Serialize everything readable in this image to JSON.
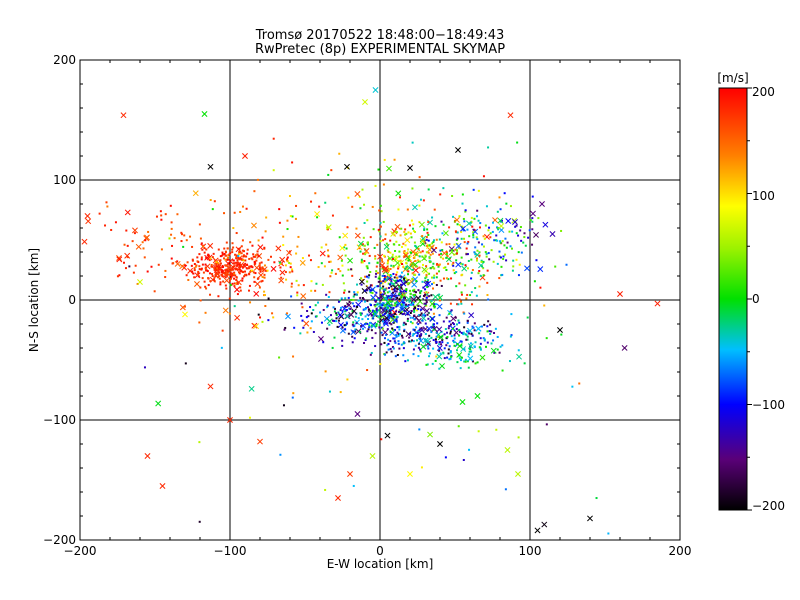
{
  "chart_data": {
    "type": "scatter",
    "title": "Tromsø 20170522 18:48:00−18:49:43",
    "subtitle": "RwPretec (8p) EXPERIMENTAL SKYMAP",
    "xlabel": "E-W location [km]",
    "ylabel": "N-S location [km]",
    "xlim": [
      -200,
      200
    ],
    "ylim": [
      -200,
      200
    ],
    "xticks": [
      "−200",
      "−100",
      "0",
      "100",
      "200"
    ],
    "yticks": [
      "−200",
      "−100",
      "0",
      "100",
      "200"
    ],
    "grid": true,
    "colorbar": {
      "label": "[m/s]",
      "range": [
        -200,
        200
      ],
      "ticks": [
        "200",
        "100",
        "0",
        "−100",
        "−200"
      ],
      "colormap": "black-purple-blue-cyan-green-yellow-orange-red"
    },
    "marker_description": "small dots and x markers colored by line-of-sight velocity",
    "clusters": [
      {
        "cx": -100,
        "cy": 28,
        "sx": 14,
        "sy": 9,
        "n": 340,
        "vmin": 160,
        "vmax": 200
      },
      {
        "cx": -150,
        "cy": 45,
        "sx": 22,
        "sy": 18,
        "n": 70,
        "vmin": 140,
        "vmax": 200
      },
      {
        "cx": -70,
        "cy": 20,
        "sx": 30,
        "sy": 28,
        "n": 110,
        "vmin": 100,
        "vmax": 200
      },
      {
        "cx": 25,
        "cy": 30,
        "sx": 28,
        "sy": 18,
        "n": 420,
        "vmin": -40,
        "vmax": 200
      },
      {
        "cx": 70,
        "cy": 50,
        "sx": 20,
        "sy": 15,
        "n": 150,
        "vmin": -160,
        "vmax": 60
      },
      {
        "cx": 10,
        "cy": 0,
        "sx": 14,
        "sy": 12,
        "n": 380,
        "vmin": -200,
        "vmax": 40
      },
      {
        "cx": -20,
        "cy": -15,
        "sx": 18,
        "sy": 10,
        "n": 160,
        "vmin": -200,
        "vmax": 0
      },
      {
        "cx": 35,
        "cy": -30,
        "sx": 22,
        "sy": 10,
        "n": 240,
        "vmin": -200,
        "vmax": -20
      },
      {
        "cx": 50,
        "cy": -40,
        "sx": 20,
        "sy": 10,
        "n": 80,
        "vmin": -60,
        "vmax": 20
      },
      {
        "cx": -5,
        "cy": 60,
        "sx": 45,
        "sy": 35,
        "n": 130,
        "vmin": -40,
        "vmax": 200
      },
      {
        "cx": 0,
        "cy": -60,
        "sx": 80,
        "sy": 60,
        "n": 70,
        "vmin": -200,
        "vmax": 200
      }
    ],
    "notable_points": [
      {
        "x": -171,
        "y": 154,
        "v": 180
      },
      {
        "x": -117,
        "y": 155,
        "v": 0
      },
      {
        "x": -113,
        "y": 111,
        "v": -200
      },
      {
        "x": -90,
        "y": 120,
        "v": 185
      },
      {
        "x": -22,
        "y": 111,
        "v": -200
      },
      {
        "x": 87,
        "y": 154,
        "v": 180
      },
      {
        "x": -195,
        "y": 70,
        "v": 180
      },
      {
        "x": 160,
        "y": 5,
        "v": 185
      },
      {
        "x": 185,
        "y": -3,
        "v": 185
      },
      {
        "x": -113,
        "y": -72,
        "v": 180
      },
      {
        "x": -100,
        "y": -100,
        "v": 180
      },
      {
        "x": -155,
        "y": -130,
        "v": 180
      },
      {
        "x": -145,
        "y": -155,
        "v": 180
      },
      {
        "x": -28,
        "y": -165,
        "v": 180
      },
      {
        "x": -15,
        "y": -95,
        "v": -150
      },
      {
        "x": 5,
        "y": -113,
        "v": -200
      },
      {
        "x": 40,
        "y": -120,
        "v": -200
      },
      {
        "x": 105,
        "y": -192,
        "v": -200
      },
      {
        "x": 140,
        "y": -182,
        "v": -200
      },
      {
        "x": -5,
        "y": -130,
        "v": 60
      },
      {
        "x": 85,
        "y": -125,
        "v": 60
      },
      {
        "x": 92,
        "y": -145,
        "v": 60
      },
      {
        "x": 65,
        "y": -80,
        "v": 0
      },
      {
        "x": 55,
        "y": -85,
        "v": 0
      },
      {
        "x": 120,
        "y": -25,
        "v": -200
      },
      {
        "x": 90,
        "y": 65,
        "v": -120
      },
      {
        "x": 102,
        "y": 72,
        "v": -150
      },
      {
        "x": 108,
        "y": 80,
        "v": -150
      },
      {
        "x": 115,
        "y": 55,
        "v": -130
      },
      {
        "x": -3,
        "y": 175,
        "v": -40
      },
      {
        "x": -10,
        "y": 165,
        "v": 70
      },
      {
        "x": 20,
        "y": 110,
        "v": -200
      },
      {
        "x": 52,
        "y": 125,
        "v": -200
      },
      {
        "x": -160,
        "y": 15,
        "v": 70
      },
      {
        "x": -130,
        "y": -12,
        "v": 90
      },
      {
        "x": -80,
        "y": -118,
        "v": 170
      },
      {
        "x": -20,
        "y": -145,
        "v": 170
      },
      {
        "x": 20,
        "y": -145,
        "v": 90
      }
    ]
  }
}
